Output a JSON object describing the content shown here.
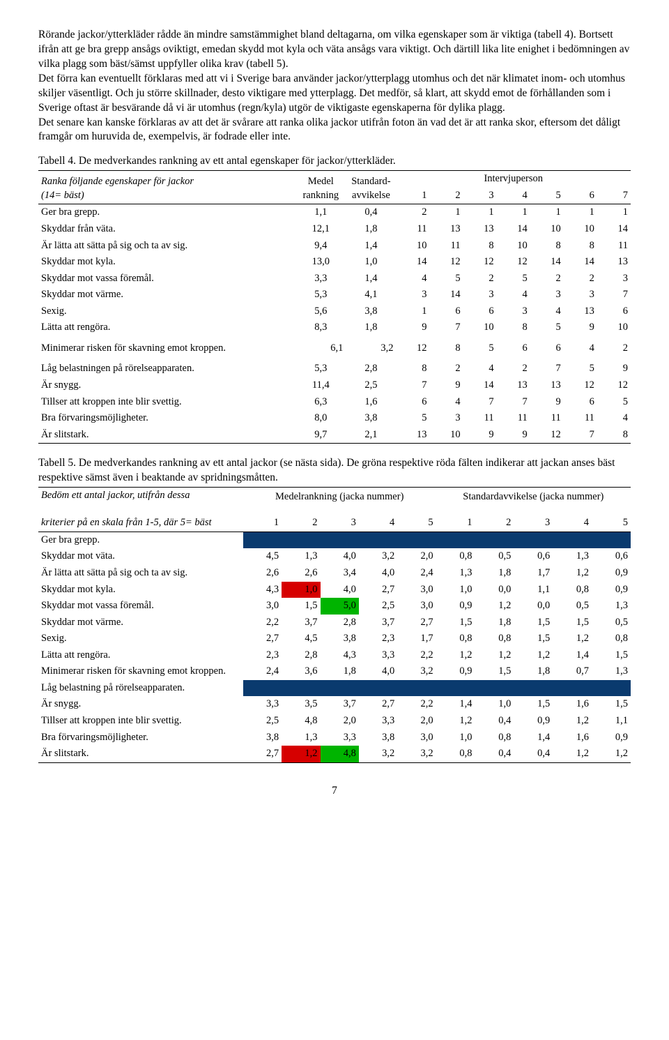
{
  "para1": "Rörande jackor/ytterkläder rådde än mindre samstämmighet bland deltagarna, om vilka egenskaper som är viktiga (tabell 4). Bortsett ifrån att ge bra grepp ansågs oviktigt, emedan skydd mot kyla och väta ansågs vara viktigt. Och därtill lika lite enighet i bedömningen av vilka plagg som bäst/sämst uppfyller olika krav (tabell 5).",
  "para2": "Det förra kan eventuellt förklaras med att vi i Sverige bara använder jackor/ytterplagg utomhus och det när klimatet inom- och utomhus skiljer väsentligt. Och ju större skillnader, desto viktigare med ytterplagg. Det medför, så klart, att skydd emot de förhållanden som i Sverige oftast är besvärande då vi är utomhus (regn/kyla) utgör de viktigaste egenskaperna för dylika plagg.",
  "para3": "Det senare kan kanske förklaras av att det är svårare att ranka olika jackor utifrån foton än vad det är att ranka skor, eftersom det dåligt framgår om huruvida de, exempelvis, är fodrade eller inte.",
  "t4": {
    "caption": "Tabell 4. De medverkandes rankning av ett antal egenskaper för jackor/ytterkläder.",
    "hdr_left1": "Ranka följande egenskaper för jackor",
    "hdr_left2": "(14= bäst)",
    "hdr_m": "Medel",
    "hdr_m2": "rankning",
    "hdr_s": "Standard-",
    "hdr_s2": "avvikelse",
    "hdr_ip": "Intervjuperson",
    "rows": [
      {
        "l": "Ger bra grepp.",
        "m": "1,1",
        "s": "0,4",
        "p": [
          "2",
          "1",
          "1",
          "1",
          "1",
          "1",
          "1"
        ]
      },
      {
        "l": "Skyddar från väta.",
        "m": "12,1",
        "s": "1,8",
        "p": [
          "11",
          "13",
          "13",
          "14",
          "10",
          "10",
          "14"
        ]
      },
      {
        "l": "Är lätta att sätta på sig och ta av sig.",
        "m": "9,4",
        "s": "1,4",
        "p": [
          "10",
          "11",
          "8",
          "10",
          "8",
          "8",
          "11"
        ]
      },
      {
        "l": "Skyddar mot kyla.",
        "m": "13,0",
        "s": "1,0",
        "p": [
          "14",
          "12",
          "12",
          "12",
          "14",
          "14",
          "13"
        ]
      },
      {
        "l": "Skyddar mot vassa föremål.",
        "m": "3,3",
        "s": "1,4",
        "p": [
          "4",
          "5",
          "2",
          "5",
          "2",
          "2",
          "3"
        ]
      },
      {
        "l": "Skyddar mot värme.",
        "m": "5,3",
        "s": "4,1",
        "p": [
          "3",
          "14",
          "3",
          "4",
          "3",
          "3",
          "7"
        ]
      },
      {
        "l": "Sexig.",
        "m": "5,6",
        "s": "3,8",
        "p": [
          "1",
          "6",
          "6",
          "3",
          "4",
          "13",
          "6"
        ]
      },
      {
        "l": "Lätta att rengöra.",
        "m": "8,3",
        "s": "1,8",
        "p": [
          "9",
          "7",
          "10",
          "8",
          "5",
          "9",
          "10"
        ]
      },
      {
        "l": "Minimerar risken för skavning emot kroppen.",
        "m": "6,1",
        "s": "3,2",
        "p": [
          "12",
          "8",
          "5",
          "6",
          "6",
          "4",
          "2"
        ],
        "sep": true
      },
      {
        "l": "Låg belastningen på rörelseapparaten.",
        "m": "5,3",
        "s": "2,8",
        "p": [
          "8",
          "2",
          "4",
          "2",
          "7",
          "5",
          "9"
        ]
      },
      {
        "l": "Är snygg.",
        "m": "11,4",
        "s": "2,5",
        "p": [
          "7",
          "9",
          "14",
          "13",
          "13",
          "12",
          "12"
        ]
      },
      {
        "l": "Tillser att kroppen inte blir svettig.",
        "m": "6,3",
        "s": "1,6",
        "p": [
          "6",
          "4",
          "7",
          "7",
          "9",
          "6",
          "5"
        ]
      },
      {
        "l": "Bra förvaringsmöjligheter.",
        "m": "8,0",
        "s": "3,8",
        "p": [
          "5",
          "3",
          "11",
          "11",
          "11",
          "11",
          "4"
        ]
      },
      {
        "l": "Är slitstark.",
        "m": "9,7",
        "s": "2,1",
        "p": [
          "13",
          "10",
          "9",
          "9",
          "12",
          "7",
          "8"
        ]
      }
    ]
  },
  "t5": {
    "caption_a": "Tabell 5. De medverkandes rankning av ett antal jackor (se nästa sida). ",
    "caption_b": "De gröna respektive röda fälten indikerar att jackan anses bäst respektive sämst även i beaktande av spridningsmåtten.",
    "hdr_left1": "Bedöm ett antal jackor, utifrån dessa",
    "hdr_left2": "kriterier på en skala från 1-5, där 5= bäst",
    "hdr_gm": "Medelrankning (jacka nummer)",
    "hdr_gs": "Standardavvikelse (jacka nummer)",
    "rows": [
      {
        "l": "Ger bra grepp.",
        "navy": true
      },
      {
        "l": "Skyddar mot väta.",
        "m": [
          "4,5",
          "1,3",
          "4,0",
          "3,2",
          "2,0"
        ],
        "s": [
          "0,8",
          "0,5",
          "0,6",
          "1,3",
          "0,6"
        ]
      },
      {
        "l": "Är lätta att sätta på sig och ta av sig.",
        "m": [
          "2,6",
          "2,6",
          "3,4",
          "4,0",
          "2,4"
        ],
        "s": [
          "1,3",
          "1,8",
          "1,7",
          "1,2",
          "0,9"
        ]
      },
      {
        "l": "Skyddar mot kyla.",
        "m": [
          "4,3",
          "1,0",
          "4,0",
          "2,7",
          "3,0"
        ],
        "s": [
          "1,0",
          "0,0",
          "1,1",
          "0,8",
          "0,9"
        ],
        "mhl": {
          "1": "red"
        }
      },
      {
        "l": "Skyddar mot vassa föremål.",
        "m": [
          "3,0",
          "1,5",
          "5,0",
          "2,5",
          "3,0"
        ],
        "s": [
          "0,9",
          "1,2",
          "0,0",
          "0,5",
          "1,3"
        ],
        "mhl": {
          "2": "green"
        }
      },
      {
        "l": "Skyddar mot värme.",
        "m": [
          "2,2",
          "3,7",
          "2,8",
          "3,7",
          "2,7"
        ],
        "s": [
          "1,5",
          "1,8",
          "1,5",
          "1,5",
          "0,5"
        ]
      },
      {
        "l": "Sexig.",
        "m": [
          "2,7",
          "4,5",
          "3,8",
          "2,3",
          "1,7"
        ],
        "s": [
          "0,8",
          "0,8",
          "1,5",
          "1,2",
          "0,8"
        ]
      },
      {
        "l": "Lätta att rengöra.",
        "m": [
          "2,3",
          "2,8",
          "4,3",
          "3,3",
          "2,2"
        ],
        "s": [
          "1,2",
          "1,2",
          "1,2",
          "1,4",
          "1,5"
        ]
      },
      {
        "l": "Minimerar risken för skavning emot kroppen.",
        "m": [
          "2,4",
          "3,6",
          "1,8",
          "4,0",
          "3,2"
        ],
        "s": [
          "0,9",
          "1,5",
          "1,8",
          "0,7",
          "1,3"
        ]
      },
      {
        "l": "Låg belastning på rörelseapparaten.",
        "navy": true
      },
      {
        "l": "Är snygg.",
        "m": [
          "3,3",
          "3,5",
          "3,7",
          "2,7",
          "2,2"
        ],
        "s": [
          "1,4",
          "1,0",
          "1,5",
          "1,6",
          "1,5"
        ]
      },
      {
        "l": "Tillser att kroppen inte blir svettig.",
        "m": [
          "2,5",
          "4,8",
          "2,0",
          "3,3",
          "2,0"
        ],
        "s": [
          "1,2",
          "0,4",
          "0,9",
          "1,2",
          "1,1"
        ]
      },
      {
        "l": "Bra förvaringsmöjligheter.",
        "m": [
          "3,8",
          "1,3",
          "3,3",
          "3,8",
          "3,0"
        ],
        "s": [
          "1,0",
          "0,8",
          "1,4",
          "1,6",
          "0,9"
        ]
      },
      {
        "l": "Är slitstark.",
        "m": [
          "2,7",
          "1,2",
          "4,8",
          "3,2",
          "3,2"
        ],
        "s": [
          "0,8",
          "0,4",
          "0,4",
          "1,2",
          "1,2"
        ],
        "mhl": {
          "1": "red",
          "2": "green"
        }
      }
    ]
  },
  "page_num": "7"
}
